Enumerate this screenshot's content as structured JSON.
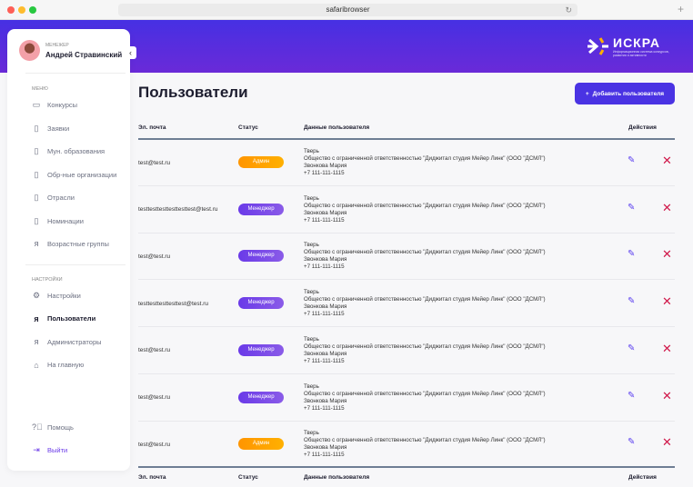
{
  "browser": {
    "url": "safaribrowser"
  },
  "logo": {
    "title": "ИСКРА",
    "subtitle": "Информационная система конкурсов, развития и активности"
  },
  "user": {
    "role": "МЕНЕЖЕР",
    "name": "Андрей Стравинский"
  },
  "sidebar": {
    "menu_label": "МЕНЮ",
    "menu": [
      {
        "label": "Конкурсы",
        "icon": "calendar-icon"
      },
      {
        "label": "Заявки",
        "icon": "document-icon"
      },
      {
        "label": "Мун. образования",
        "icon": "document-icon"
      },
      {
        "label": "Обр-ные организации",
        "icon": "document-icon"
      },
      {
        "label": "Отрасли",
        "icon": "document-icon"
      },
      {
        "label": "Номинации",
        "icon": "document-icon"
      },
      {
        "label": "Возрастные группы",
        "icon": "user-icon"
      }
    ],
    "settings_label": "НАСТРОЙКИ",
    "settings": [
      {
        "label": "Настройки",
        "icon": "gear-icon"
      },
      {
        "label": "Пользователи",
        "icon": "user-icon",
        "active": true
      },
      {
        "label": "Администраторы",
        "icon": "user-icon"
      },
      {
        "label": "На главную",
        "icon": "home-icon"
      }
    ],
    "help": "Помощь",
    "logout": "Выйти"
  },
  "page": {
    "title": "Пользователи",
    "add_button": "Добавить пользователя"
  },
  "table": {
    "headers": {
      "email": "Эл. почта",
      "status": "Статус",
      "data": "Данные пользователя",
      "actions": "Действия"
    },
    "rows": [
      {
        "email": "test@test.ru",
        "status": "Админ",
        "city": "Тверь",
        "org": "Общество с ограниченной ответственностью \"Диджитал студия Мейер Линк\" (ООО \"ДСМЛ\")",
        "person": "Звонкова Мария",
        "phone": "+7 111-111-1115"
      },
      {
        "email": "testtesttesttesttesttest@test.ru",
        "status": "Менеджер",
        "city": "Тверь",
        "org": "Общество с ограниченной ответственностью \"Диджитал студия Мейер Линк\" (ООО \"ДСМЛ\")",
        "person": "Звонкова Мария",
        "phone": "+7 111-111-1115"
      },
      {
        "email": "test@test.ru",
        "status": "Менеджер",
        "city": "Тверь",
        "org": "Общество с ограниченной ответственностью \"Диджитал студия Мейер Линк\" (ООО \"ДСМЛ\")",
        "person": "Звонкова Мария",
        "phone": "+7 111-111-1115"
      },
      {
        "email": "testtesttesttesttest@test.ru",
        "status": "Менеджер",
        "city": "Тверь",
        "org": "Общество с ограниченной ответственностью \"Диджитал студия Мейер Линк\" (ООО \"ДСМЛ\")",
        "person": "Звонкова Мария",
        "phone": "+7 111-111-1115"
      },
      {
        "email": "test@test.ru",
        "status": "Менеджер",
        "city": "Тверь",
        "org": "Общество с ограниченной ответственностью \"Диджитал студия Мейер Линк\" (ООО \"ДСМЛ\")",
        "person": "Звонкова Мария",
        "phone": "+7 111-111-1115"
      },
      {
        "email": "test@test.ru",
        "status": "Менеджер",
        "city": "Тверь",
        "org": "Общество с ограниченной ответственностью \"Диджитал студия Мейер Линк\" (ООО \"ДСМЛ\")",
        "person": "Звонкова Мария",
        "phone": "+7 111-111-1115"
      },
      {
        "email": "test@test.ru",
        "status": "Админ",
        "city": "Тверь",
        "org": "Общество с ограниченной ответственностью \"Диджитал студия Мейер Линк\" (ООО \"ДСМЛ\")",
        "person": "Звонкова Мария",
        "phone": "+7 111-111-1115"
      }
    ]
  },
  "colors": {
    "accent": "#4a33e3",
    "admin": "#ff9500",
    "manager": "#6a3ae8",
    "delete": "#d0184a"
  }
}
